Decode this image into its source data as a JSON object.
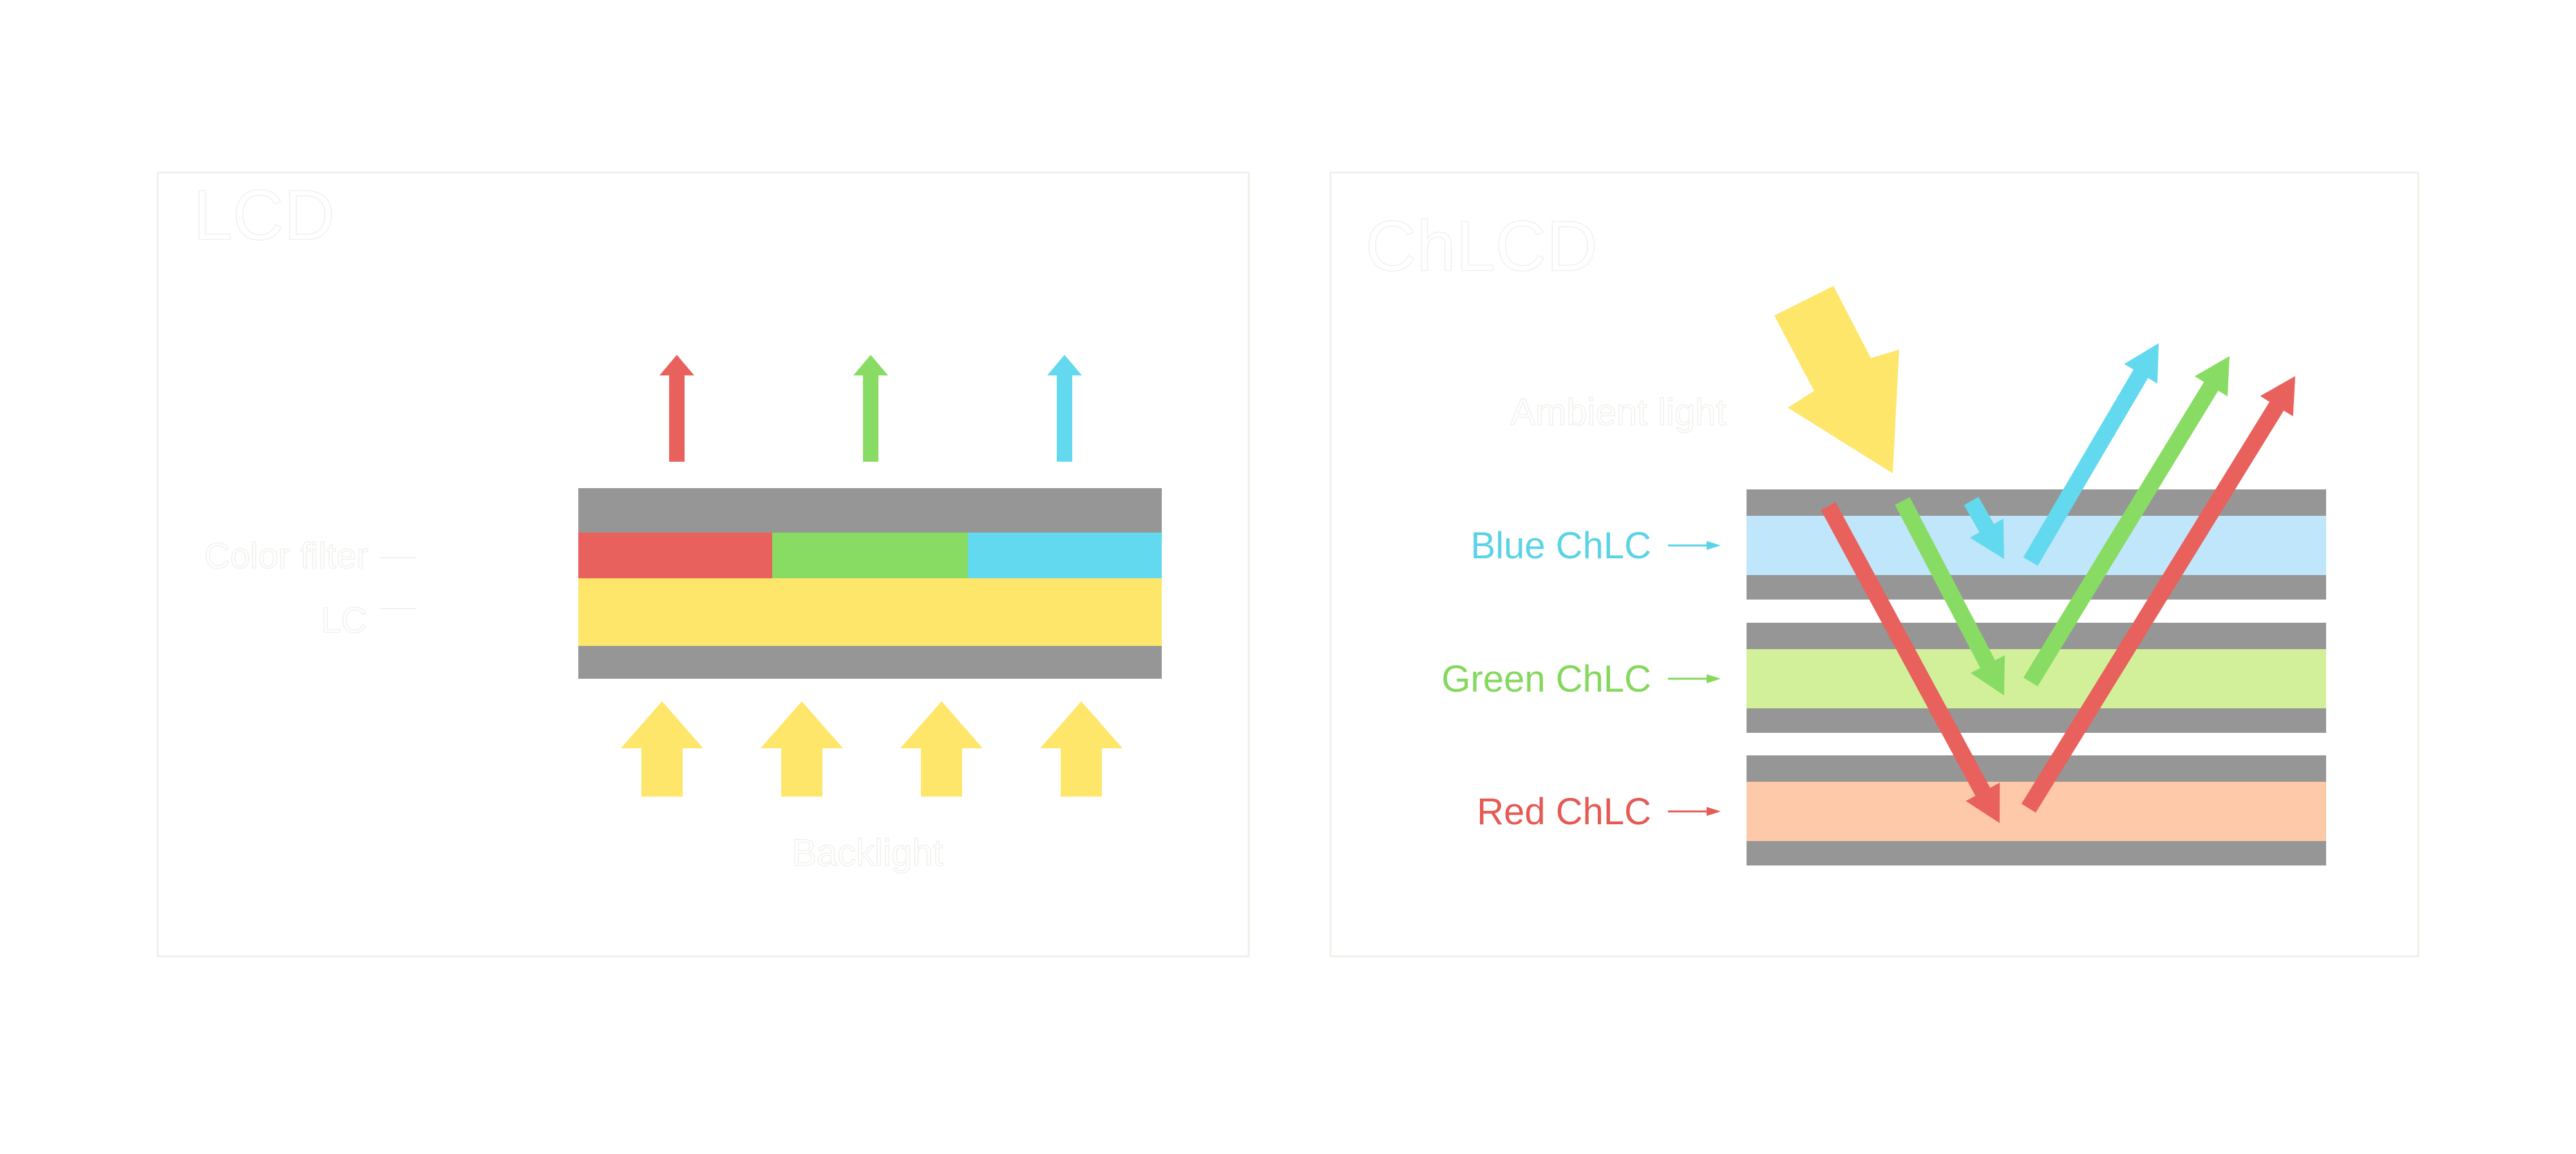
{
  "left_panel": {
    "title": "LCD",
    "labels": {
      "color_filter": "Color filter",
      "lc": "LC",
      "backlight": "Backlight"
    }
  },
  "right_panel": {
    "title": "ChLCD",
    "ambient_label": "Ambient light",
    "layers": [
      {
        "label": "Blue ChLC",
        "color": "#5bd3e6",
        "fill": "#c0e6fb"
      },
      {
        "label": "Green ChLC",
        "color": "#84d85c",
        "fill": "#d2f09a"
      },
      {
        "label": "Red ChLC",
        "color": "#e55a55",
        "fill": "#fdc9a8"
      }
    ]
  },
  "colors": {
    "red": "#e8615c",
    "green": "#88dc64",
    "cyan": "#62d9ee",
    "yellow": "#fee66a",
    "gray": "#969696",
    "panel_border": "#f0efe9"
  }
}
